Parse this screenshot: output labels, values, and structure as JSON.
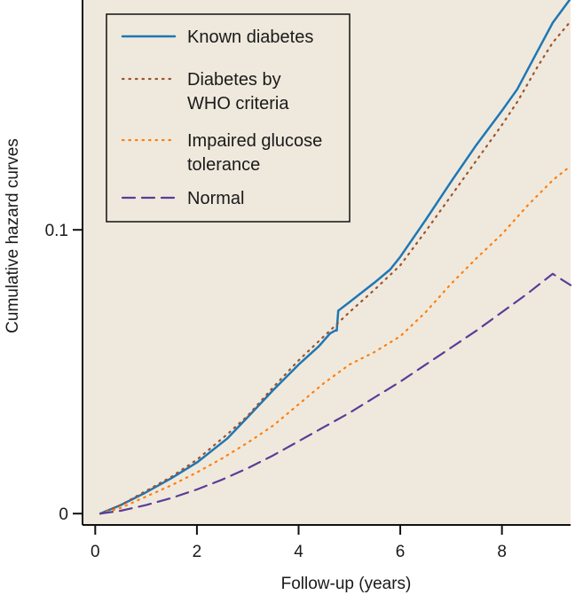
{
  "chart_data": {
    "type": "line",
    "xlabel": "Follow-up (years)",
    "ylabel": "Cumulative hazard curves",
    "xlim": [
      -0.25,
      9.35
    ],
    "ylim": [
      -0.004,
      0.181
    ],
    "x_ticks": [
      {
        "value": 0,
        "label": "0"
      },
      {
        "value": 2,
        "label": "2"
      },
      {
        "value": 4,
        "label": "4"
      },
      {
        "value": 6,
        "label": "6"
      },
      {
        "value": 8,
        "label": "8"
      }
    ],
    "y_ticks": [
      {
        "value": 0,
        "label": "0"
      },
      {
        "value": 0.1,
        "label": "0.1"
      }
    ],
    "background_color": "#efe9dd",
    "legend_position": "top-left",
    "series": [
      {
        "name": "Known diabetes",
        "color": "#1f77b4",
        "dash": "solid",
        "points": [
          [
            0.1,
            0.0
          ],
          [
            0.5,
            0.003
          ],
          [
            1.0,
            0.0075
          ],
          [
            1.5,
            0.0125
          ],
          [
            2.0,
            0.018
          ],
          [
            2.6,
            0.0265
          ],
          [
            3.0,
            0.034
          ],
          [
            3.5,
            0.0435
          ],
          [
            4.0,
            0.0525
          ],
          [
            4.4,
            0.059
          ],
          [
            4.62,
            0.0635
          ],
          [
            4.72,
            0.0645
          ],
          [
            4.75,
            0.0645
          ],
          [
            4.78,
            0.0715
          ],
          [
            5.0,
            0.0745
          ],
          [
            5.5,
            0.0815
          ],
          [
            5.8,
            0.086
          ],
          [
            6.0,
            0.0905
          ],
          [
            6.5,
            0.1035
          ],
          [
            7.0,
            0.117
          ],
          [
            7.5,
            0.13
          ],
          [
            8.0,
            0.142
          ],
          [
            8.3,
            0.1495
          ],
          [
            8.7,
            0.163
          ],
          [
            9.0,
            0.173
          ],
          [
            9.35,
            0.1815
          ]
        ]
      },
      {
        "name": "Diabetes by WHO criteria",
        "line2": "",
        "color": "#a0522d",
        "dash": "dotted",
        "points": [
          [
            0.1,
            0.0
          ],
          [
            0.5,
            0.003
          ],
          [
            1.0,
            0.008
          ],
          [
            1.5,
            0.013
          ],
          [
            2.0,
            0.019
          ],
          [
            2.6,
            0.028
          ],
          [
            3.0,
            0.0345
          ],
          [
            3.5,
            0.0445
          ],
          [
            4.0,
            0.054
          ],
          [
            4.5,
            0.0625
          ],
          [
            5.0,
            0.071
          ],
          [
            5.5,
            0.079
          ],
          [
            6.0,
            0.0875
          ],
          [
            6.5,
            0.0995
          ],
          [
            7.0,
            0.112
          ],
          [
            7.5,
            0.1245
          ],
          [
            8.0,
            0.137
          ],
          [
            8.3,
            0.145
          ],
          [
            8.7,
            0.1575
          ],
          [
            9.0,
            0.166
          ],
          [
            9.35,
            0.1735
          ]
        ]
      },
      {
        "name": "Impaired glucose",
        "color": "#ff7f0e",
        "dash": "dotted",
        "points": [
          [
            0.1,
            0.0
          ],
          [
            0.5,
            0.002
          ],
          [
            1.0,
            0.006
          ],
          [
            1.5,
            0.01
          ],
          [
            2.0,
            0.0145
          ],
          [
            2.5,
            0.0195
          ],
          [
            3.0,
            0.025
          ],
          [
            3.5,
            0.031
          ],
          [
            4.0,
            0.0385
          ],
          [
            4.5,
            0.046
          ],
          [
            5.0,
            0.0525
          ],
          [
            5.5,
            0.057
          ],
          [
            6.0,
            0.0625
          ],
          [
            6.5,
            0.071
          ],
          [
            7.0,
            0.081
          ],
          [
            7.5,
            0.09
          ],
          [
            8.0,
            0.0985
          ],
          [
            8.5,
            0.1085
          ],
          [
            9.0,
            0.1175
          ],
          [
            9.35,
            0.1225
          ]
        ]
      },
      {
        "name": "Normal",
        "color": "#5b3c99",
        "dash": "dashed",
        "points": [
          [
            0.1,
            0.0
          ],
          [
            0.5,
            0.001
          ],
          [
            1.0,
            0.003
          ],
          [
            1.5,
            0.0055
          ],
          [
            2.0,
            0.0085
          ],
          [
            2.5,
            0.012
          ],
          [
            3.0,
            0.016
          ],
          [
            3.5,
            0.0205
          ],
          [
            4.0,
            0.0255
          ],
          [
            4.5,
            0.0305
          ],
          [
            5.0,
            0.0355
          ],
          [
            5.5,
            0.041
          ],
          [
            6.0,
            0.0465
          ],
          [
            6.5,
            0.0525
          ],
          [
            7.0,
            0.0585
          ],
          [
            7.5,
            0.0645
          ],
          [
            8.0,
            0.071
          ],
          [
            8.5,
            0.0775
          ],
          [
            9.0,
            0.0845
          ],
          [
            9.35,
            0.0805
          ]
        ]
      }
    ]
  },
  "legend": {
    "items": [
      {
        "lines": [
          "Known diabetes"
        ]
      },
      {
        "lines": [
          "Diabetes by",
          "WHO criteria"
        ]
      },
      {
        "lines": [
          "Impaired glucose",
          "tolerance"
        ]
      },
      {
        "lines": [
          "Normal"
        ]
      }
    ]
  }
}
